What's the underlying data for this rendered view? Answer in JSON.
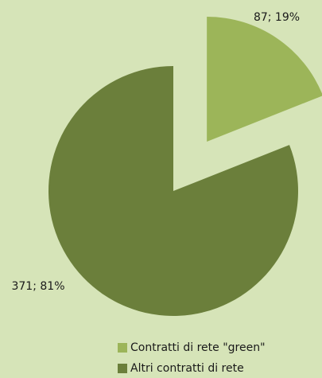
{
  "chart_data": {
    "type": "pie",
    "categories": [
      "Contratti di rete \"green\"",
      "Altri contratti di rete"
    ],
    "values": [
      87,
      371
    ],
    "value_labels": [
      "87; 19%",
      "371; 81%"
    ],
    "colors": [
      "#9cb559",
      "#6b7f3b"
    ],
    "legend": "bottom"
  }
}
